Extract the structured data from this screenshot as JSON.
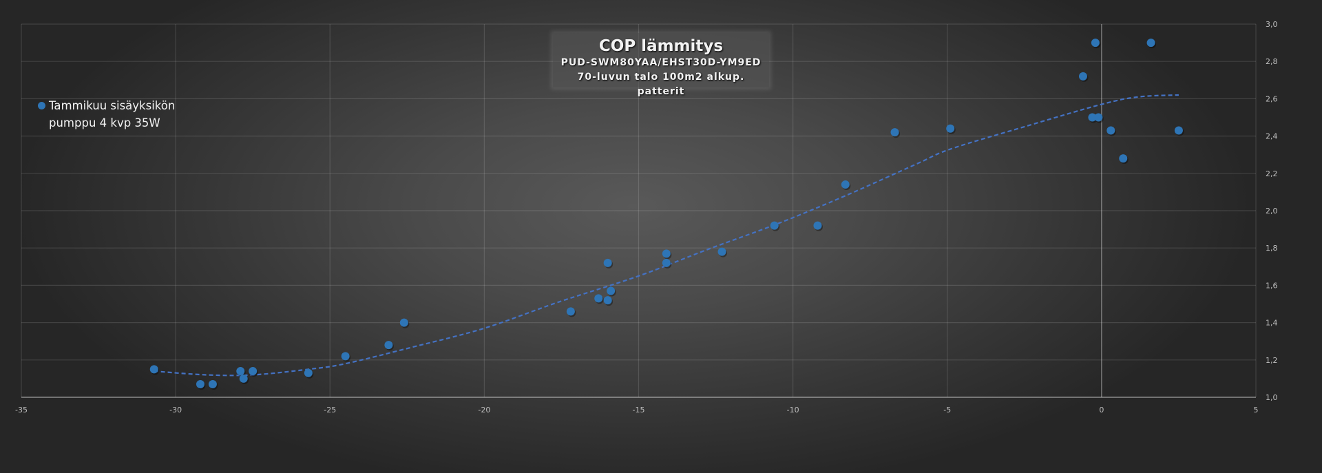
{
  "title": {
    "main": "COP lämmitys",
    "line2": "PUD-SWM80YAA/EHST30D-YM9ED",
    "line3": "70-luvun talo 100m2 alkup. patterit"
  },
  "legend": {
    "label": "Tammikuu sisäyksikön pumppu 4 kvp 35W",
    "color": "#2e75b6"
  },
  "chart_data": {
    "type": "scatter",
    "title": "COP lämmitys",
    "subtitle": [
      "PUD-SWM80YAA/EHST30D-YM9ED",
      "70-luvun talo 100m2 alkup. patterit"
    ],
    "xlabel": "",
    "ylabel": "",
    "xlim": [
      -35,
      5
    ],
    "ylim": [
      1.0,
      3.0
    ],
    "x_ticks": [
      -35,
      -30,
      -25,
      -20,
      -15,
      -10,
      -5,
      0,
      5
    ],
    "x_tick_labels": [
      "-35",
      "-30",
      "-25",
      "-20",
      "-15",
      "-10",
      "-5",
      "0",
      "5"
    ],
    "y_ticks": [
      1.0,
      1.2,
      1.4,
      1.6,
      1.8,
      2.0,
      2.2,
      2.4,
      2.6,
      2.8,
      3.0
    ],
    "y_tick_labels": [
      "1,0",
      "1,2",
      "1,4",
      "1,6",
      "1,8",
      "2,0",
      "2,2",
      "2,4",
      "2,6",
      "2,8",
      "3,0"
    ],
    "y_axis_position": "right",
    "grid": true,
    "legend_position": "left",
    "series": [
      {
        "name": "Tammikuu sisäyksikön pumppu 4 kvp 35W",
        "color": "#2e75b6",
        "points": [
          [
            -30.7,
            1.15
          ],
          [
            -29.2,
            1.07
          ],
          [
            -28.8,
            1.07
          ],
          [
            -27.9,
            1.14
          ],
          [
            -27.8,
            1.1
          ],
          [
            -27.5,
            1.14
          ],
          [
            -25.7,
            1.13
          ],
          [
            -24.5,
            1.22
          ],
          [
            -23.1,
            1.28
          ],
          [
            -22.6,
            1.4
          ],
          [
            -17.2,
            1.46
          ],
          [
            -16.3,
            1.53
          ],
          [
            -16.0,
            1.52
          ],
          [
            -15.9,
            1.57
          ],
          [
            -16.0,
            1.72
          ],
          [
            -14.1,
            1.77
          ],
          [
            -14.1,
            1.72
          ],
          [
            -12.3,
            1.78
          ],
          [
            -10.6,
            1.92
          ],
          [
            -9.2,
            1.92
          ],
          [
            -8.3,
            2.14
          ],
          [
            -6.7,
            2.42
          ],
          [
            -4.9,
            2.44
          ],
          [
            -0.6,
            2.72
          ],
          [
            -0.2,
            2.9
          ],
          [
            1.6,
            2.9
          ],
          [
            -0.3,
            2.5
          ],
          [
            -0.1,
            2.5
          ],
          [
            0.3,
            2.43
          ],
          [
            2.5,
            2.43
          ],
          [
            0.7,
            2.28
          ]
        ]
      }
    ],
    "trendline": {
      "type": "polynomial",
      "style": "dashed",
      "color": "#4472c4",
      "points": [
        [
          -30.7,
          1.14
        ],
        [
          -29.0,
          1.12
        ],
        [
          -27.5,
          1.12
        ],
        [
          -25.7,
          1.15
        ],
        [
          -24.5,
          1.18
        ],
        [
          -22.3,
          1.27
        ],
        [
          -20.0,
          1.37
        ],
        [
          -17.6,
          1.51
        ],
        [
          -15.0,
          1.65
        ],
        [
          -12.8,
          1.79
        ],
        [
          -10.5,
          1.93
        ],
        [
          -8.3,
          2.08
        ],
        [
          -6.0,
          2.25
        ],
        [
          -4.9,
          2.33
        ],
        [
          -2.5,
          2.45
        ],
        [
          0.0,
          2.57
        ],
        [
          1.2,
          2.61
        ],
        [
          2.5,
          2.62
        ]
      ]
    }
  }
}
